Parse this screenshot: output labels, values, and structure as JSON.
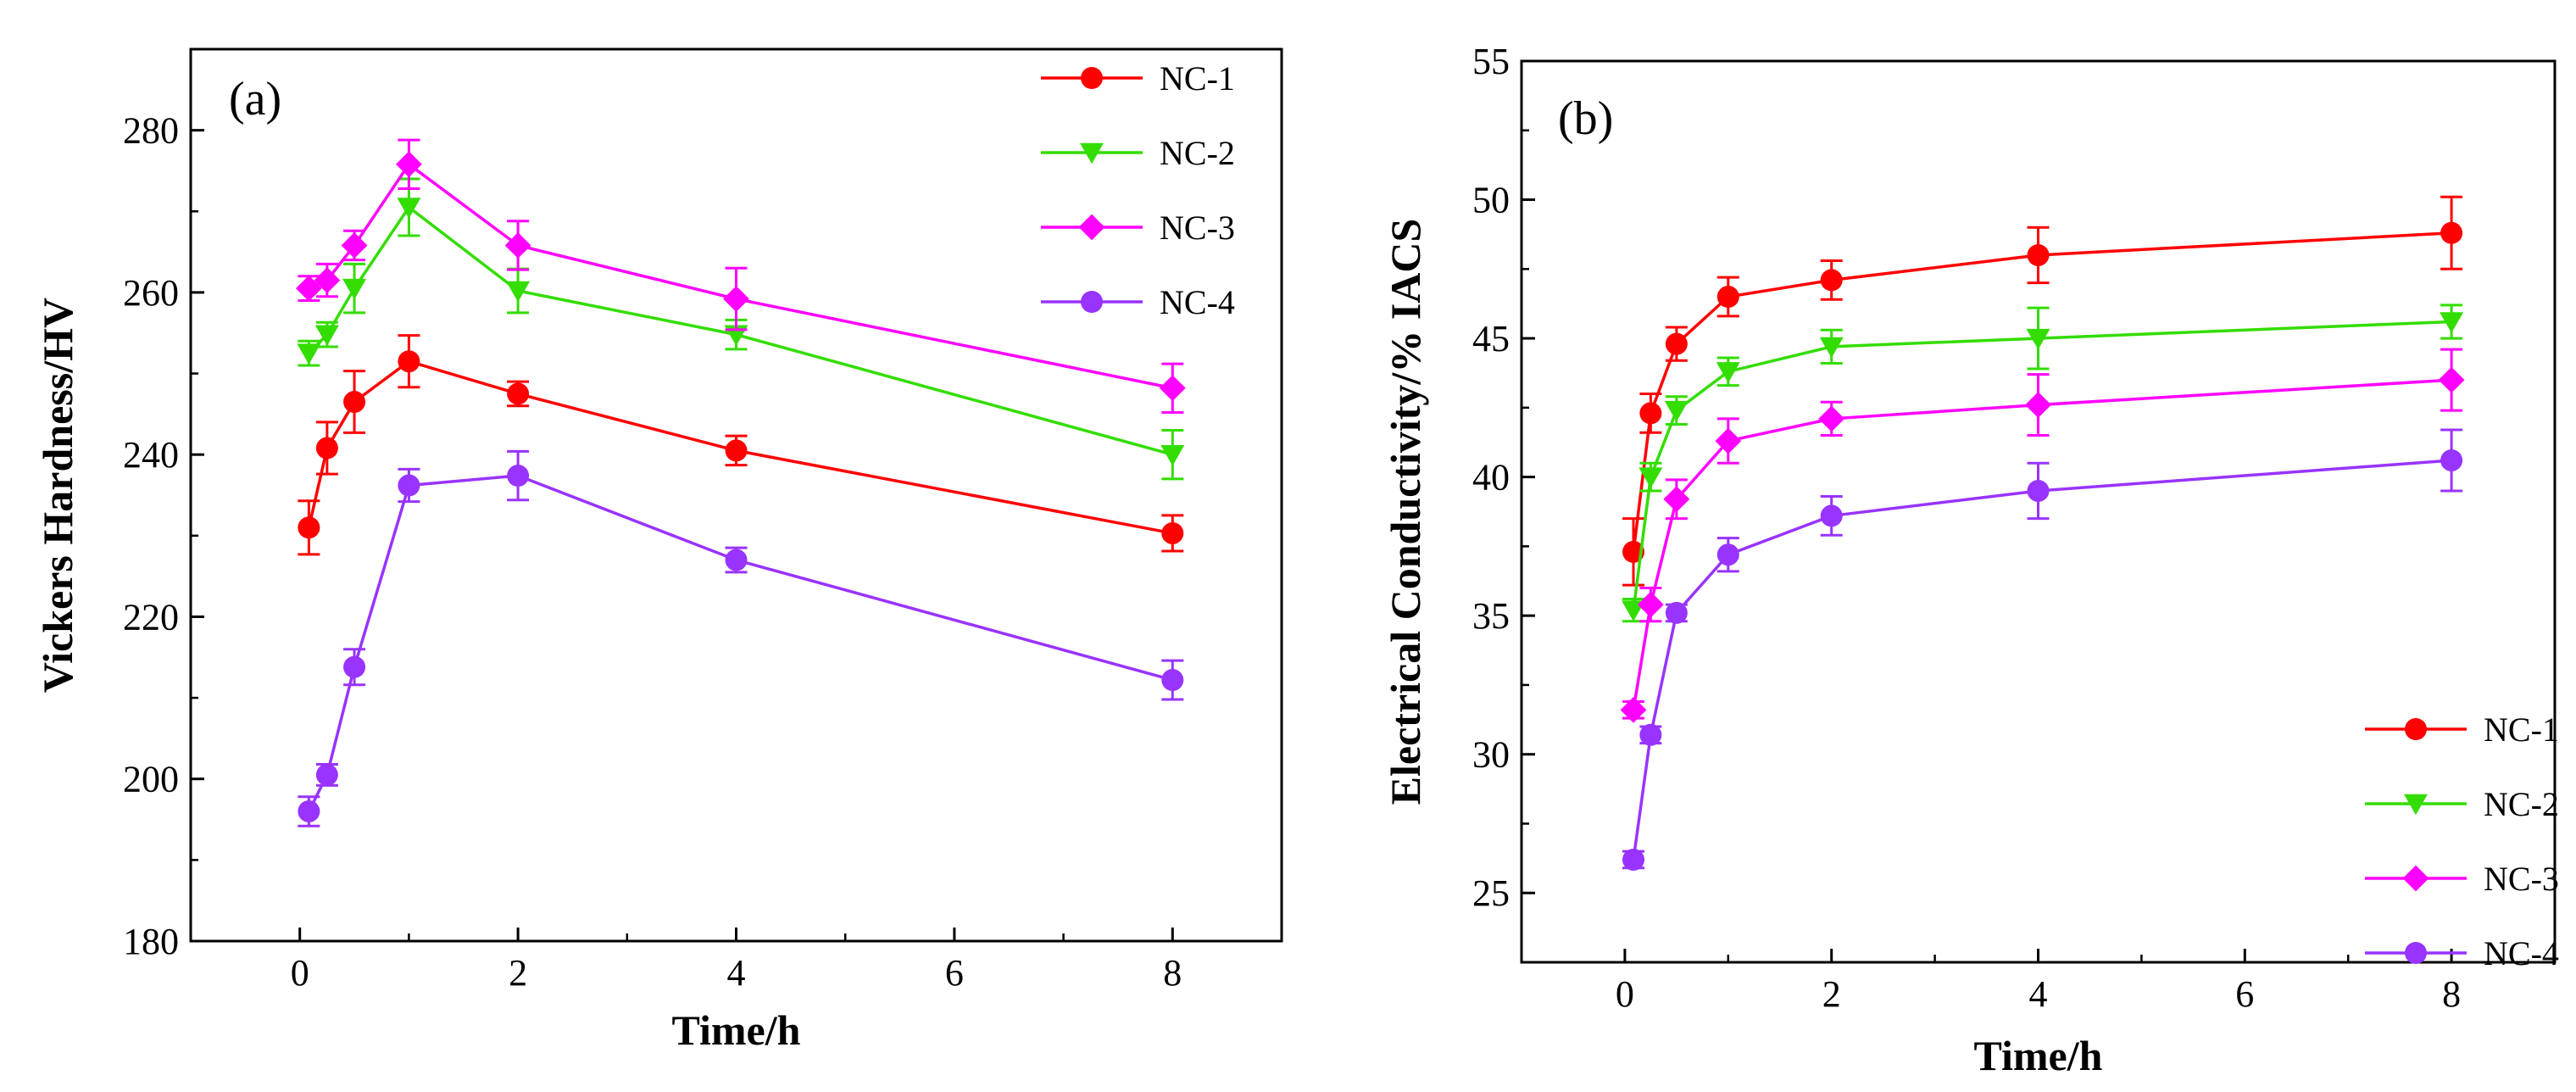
{
  "figure": {
    "background": "#ffffff",
    "axis_color": "#000000"
  },
  "chart_data": [
    {
      "id": "a",
      "type": "line",
      "panel_label": "(a)",
      "title": "",
      "xlabel": "Time/h",
      "ylabel": "Vickers Hardness/HV",
      "xlim": [
        -1,
        9
      ],
      "ylim": [
        180,
        290
      ],
      "xticks": [
        0,
        2,
        4,
        6,
        8
      ],
      "yticks": [
        180,
        200,
        220,
        240,
        260,
        280
      ],
      "legend": "top-right",
      "x": [
        0.083,
        0.25,
        0.5,
        1,
        2,
        4,
        8
      ],
      "series": [
        {
          "name": "NC-1",
          "marker": "circle",
          "color": "#ff0000",
          "values": [
            231,
            240.8,
            246.5,
            251.5,
            247.5,
            240.5,
            230.3
          ],
          "errors": [
            3.3,
            3.2,
            3.8,
            3.2,
            1.5,
            1.8,
            2.2
          ]
        },
        {
          "name": "NC-2",
          "marker": "triangle-down",
          "color": "#33dd00",
          "values": [
            252.5,
            254.8,
            260.5,
            270.5,
            260.2,
            254.8,
            240
          ],
          "errors": [
            1.5,
            1.5,
            3.0,
            3.5,
            2.7,
            1.8,
            3.0
          ]
        },
        {
          "name": "NC-3",
          "marker": "diamond",
          "color": "#ff00ff",
          "values": [
            260.5,
            261.5,
            265.8,
            275.8,
            265.8,
            259.2,
            248.2
          ],
          "errors": [
            1.5,
            2.0,
            1.8,
            3.0,
            3.0,
            3.8,
            3.0
          ]
        },
        {
          "name": "NC-4",
          "marker": "circle",
          "color": "#9933ff",
          "values": [
            196,
            200.5,
            213.8,
            236.2,
            237.4,
            227,
            212.2
          ],
          "errors": [
            1.8,
            1.3,
            2.2,
            2.0,
            3.0,
            1.5,
            2.4
          ]
        }
      ]
    },
    {
      "id": "b",
      "type": "line",
      "panel_label": "(b)",
      "title": "",
      "xlabel": "Time/h",
      "ylabel": "Electrical Conductivity/% IACS",
      "xlim": [
        -1,
        9
      ],
      "ylim": [
        22.5,
        55
      ],
      "xticks": [
        0,
        2,
        4,
        6,
        8
      ],
      "yticks": [
        25,
        30,
        35,
        40,
        45,
        50,
        55
      ],
      "legend": "bottom-right",
      "x": [
        0.083,
        0.25,
        0.5,
        1,
        2,
        4,
        8
      ],
      "series": [
        {
          "name": "NC-1",
          "marker": "circle",
          "color": "#ff0000",
          "values": [
            37.3,
            42.3,
            44.8,
            46.5,
            47.1,
            48,
            48.8
          ],
          "errors": [
            1.2,
            0.7,
            0.6,
            0.7,
            0.7,
            1.0,
            1.3
          ]
        },
        {
          "name": "NC-2",
          "marker": "triangle-down",
          "color": "#33dd00",
          "values": [
            35.2,
            40,
            42.4,
            43.8,
            44.7,
            45,
            45.6
          ],
          "errors": [
            0.4,
            0.5,
            0.5,
            0.5,
            0.6,
            1.1,
            0.6
          ]
        },
        {
          "name": "NC-3",
          "marker": "diamond",
          "color": "#ff00ff",
          "values": [
            31.6,
            35.4,
            39.2,
            41.3,
            42.1,
            42.6,
            43.5
          ],
          "errors": [
            0.3,
            0.6,
            0.7,
            0.8,
            0.6,
            1.1,
            1.1
          ]
        },
        {
          "name": "NC-4",
          "marker": "circle",
          "color": "#9933ff",
          "values": [
            26.2,
            30.7,
            35.1,
            37.2,
            38.6,
            39.5,
            40.6
          ],
          "errors": [
            0.3,
            0.3,
            0.3,
            0.6,
            0.7,
            1.0,
            1.1
          ]
        }
      ]
    }
  ]
}
